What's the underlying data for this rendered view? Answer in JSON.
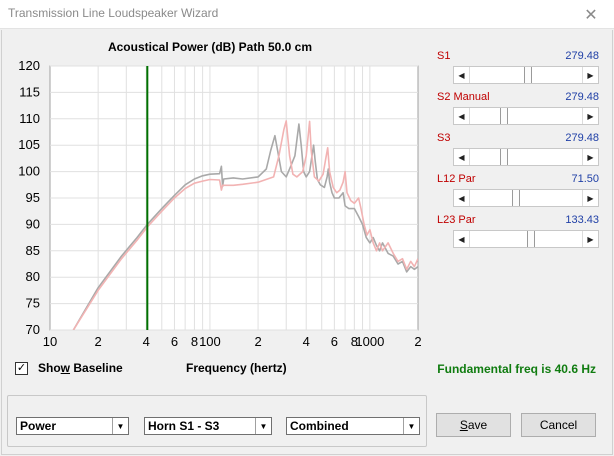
{
  "window": {
    "title": "Transmission Line Loudspeaker Wizard",
    "close_glyph": "✕"
  },
  "chart": {
    "title": "Acoustical Power (dB)   Path 50.0 cm"
  },
  "chart_data": {
    "type": "line",
    "title": "Acoustical Power (dB)   Path 50.0 cm",
    "xlabel": "Frequency (hertz)",
    "ylabel": "",
    "xscale": "log",
    "xlim": [
      10,
      2000
    ],
    "ylim": [
      70,
      120
    ],
    "xticks": [
      {
        "value": 10,
        "label": "10"
      },
      {
        "value": 20,
        "label": "2"
      },
      {
        "value": 40,
        "label": "4"
      },
      {
        "value": 60,
        "label": "6"
      },
      {
        "value": 80,
        "label": "8"
      },
      {
        "value": 100,
        "label": "100"
      },
      {
        "value": 200,
        "label": "2"
      },
      {
        "value": 400,
        "label": "4"
      },
      {
        "value": 600,
        "label": "6"
      },
      {
        "value": 800,
        "label": "8"
      },
      {
        "value": 1000,
        "label": "1000"
      },
      {
        "value": 2000,
        "label": "2"
      }
    ],
    "yticks": [
      70,
      75,
      80,
      85,
      90,
      95,
      100,
      105,
      110,
      115,
      120
    ],
    "grid": true,
    "marker": {
      "x": 40.6,
      "color": "#007000"
    },
    "series": [
      {
        "color": "#a9a9a9",
        "points": [
          [
            14,
            70
          ],
          [
            20,
            78
          ],
          [
            28,
            84
          ],
          [
            35,
            87.5
          ],
          [
            40.6,
            90
          ],
          [
            50,
            93
          ],
          [
            60,
            95.5
          ],
          [
            70,
            97.5
          ],
          [
            80,
            98.6
          ],
          [
            90,
            99.2
          ],
          [
            100,
            99.5
          ],
          [
            115,
            99.6
          ],
          [
            118,
            101
          ],
          [
            120,
            97.2
          ],
          [
            122,
            98.6
          ],
          [
            140,
            98.8
          ],
          [
            160,
            98.6
          ],
          [
            200,
            99
          ],
          [
            225,
            100.5
          ],
          [
            240,
            104
          ],
          [
            255,
            106.8
          ],
          [
            265,
            104
          ],
          [
            280,
            100
          ],
          [
            300,
            99
          ],
          [
            320,
            101
          ],
          [
            340,
            103
          ],
          [
            350,
            106
          ],
          [
            360,
            109
          ],
          [
            372,
            105
          ],
          [
            385,
            100
          ],
          [
            400,
            99
          ],
          [
            420,
            100
          ],
          [
            435,
            103
          ],
          [
            445,
            105
          ],
          [
            455,
            102
          ],
          [
            470,
            98.5
          ],
          [
            490,
            97.5
          ],
          [
            520,
            97
          ],
          [
            540,
            99
          ],
          [
            550,
            100.5
          ],
          [
            560,
            98
          ],
          [
            580,
            96
          ],
          [
            600,
            95
          ],
          [
            640,
            95
          ],
          [
            680,
            96
          ],
          [
            700,
            93.5
          ],
          [
            740,
            93
          ],
          [
            800,
            93
          ],
          [
            850,
            91.5
          ],
          [
            900,
            90
          ],
          [
            950,
            87.5
          ],
          [
            1000,
            86.5
          ],
          [
            1050,
            87.5
          ],
          [
            1100,
            86
          ],
          [
            1150,
            85
          ],
          [
            1200,
            86.5
          ],
          [
            1300,
            84.5
          ],
          [
            1400,
            84
          ],
          [
            1500,
            82.5
          ],
          [
            1600,
            83
          ],
          [
            1700,
            81
          ],
          [
            1800,
            82
          ],
          [
            1900,
            81.5
          ],
          [
            2000,
            82
          ]
        ]
      },
      {
        "color": "#f2b3b3",
        "points": [
          [
            14,
            70
          ],
          [
            20,
            77.5
          ],
          [
            28,
            83.5
          ],
          [
            35,
            87
          ],
          [
            40.6,
            89.5
          ],
          [
            50,
            92.5
          ],
          [
            60,
            95
          ],
          [
            70,
            96.8
          ],
          [
            80,
            97.8
          ],
          [
            90,
            98.2
          ],
          [
            100,
            98.5
          ],
          [
            115,
            98.4
          ],
          [
            118,
            96.5
          ],
          [
            120,
            97.4
          ],
          [
            140,
            97.4
          ],
          [
            160,
            97.6
          ],
          [
            200,
            98
          ],
          [
            250,
            99
          ],
          [
            270,
            103
          ],
          [
            290,
            108
          ],
          [
            300,
            109.6
          ],
          [
            315,
            103
          ],
          [
            330,
            99.5
          ],
          [
            350,
            99
          ],
          [
            380,
            100
          ],
          [
            400,
            103
          ],
          [
            412,
            107
          ],
          [
            420,
            109.5
          ],
          [
            430,
            104
          ],
          [
            450,
            99
          ],
          [
            480,
            98.2
          ],
          [
            510,
            99.5
          ],
          [
            530,
            102.5
          ],
          [
            545,
            104.5
          ],
          [
            560,
            100
          ],
          [
            590,
            97
          ],
          [
            620,
            96
          ],
          [
            650,
            96.5
          ],
          [
            680,
            98
          ],
          [
            700,
            100
          ],
          [
            720,
            96
          ],
          [
            760,
            94.5
          ],
          [
            800,
            94
          ],
          [
            850,
            95
          ],
          [
            880,
            93
          ],
          [
            920,
            90
          ],
          [
            960,
            88
          ],
          [
            1000,
            89
          ],
          [
            1050,
            86.5
          ],
          [
            1100,
            85
          ],
          [
            1150,
            86.5
          ],
          [
            1200,
            85
          ],
          [
            1300,
            86.5
          ],
          [
            1400,
            84.5
          ],
          [
            1500,
            83
          ],
          [
            1600,
            83.5
          ],
          [
            1700,
            81.5
          ],
          [
            1800,
            83
          ],
          [
            1900,
            82
          ],
          [
            2000,
            83.5
          ]
        ]
      }
    ]
  },
  "sliders": [
    {
      "label": "S1",
      "value": "279.48",
      "fraction": 0.52
    },
    {
      "label": "S2  Manual",
      "value": "279.48",
      "fraction": 0.29
    },
    {
      "label": "S3",
      "value": "279.48",
      "fraction": 0.29
    },
    {
      "label": "L12  Par",
      "value": "71.50",
      "fraction": 0.4
    },
    {
      "label": "L23  Par",
      "value": "133.43",
      "fraction": 0.55
    }
  ],
  "baseline": {
    "checked_glyph": "✓",
    "label_pre": "Sho",
    "label_accel": "w",
    "label_post": " Baseline"
  },
  "axis": {
    "x_label": "Frequency (hertz)"
  },
  "fundamental": {
    "text": "Fundamental freq is 40.6 Hz",
    "color": "#107c10"
  },
  "dropdowns": [
    {
      "value": "Power"
    },
    {
      "value": "Horn S1 - S3"
    },
    {
      "value": "Combined"
    }
  ],
  "buttons": {
    "save_accel": "S",
    "save_rest": "ave",
    "cancel": "Cancel"
  },
  "icons": {
    "scroll_left": "◀",
    "scroll_right": "▶",
    "dropdown": "▼"
  }
}
